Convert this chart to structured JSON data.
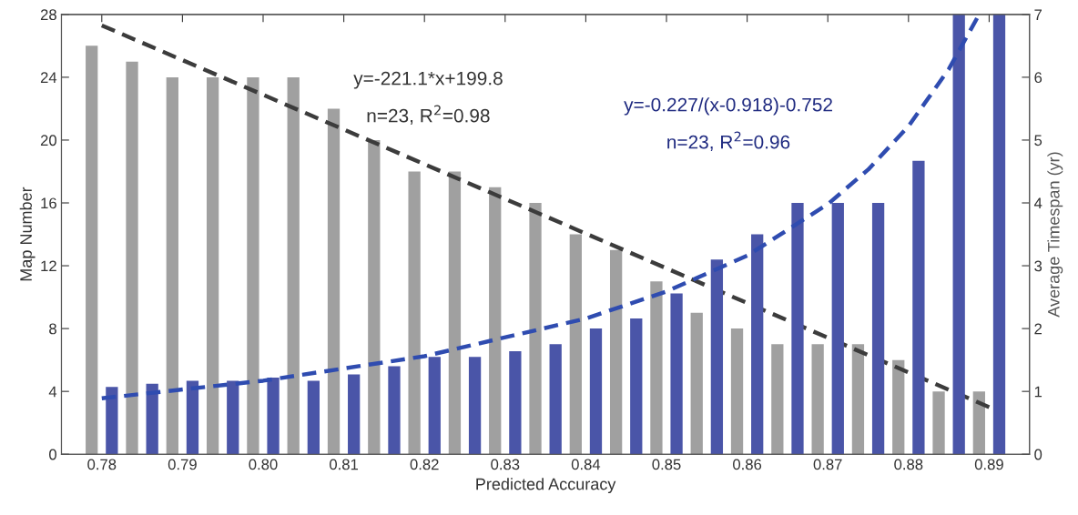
{
  "chart_data": {
    "type": "bar",
    "xlabel": "Predicted Accuracy",
    "ylabel": "Map Number",
    "y2label": "Average Timespan (yr)",
    "xlim": [
      0.775,
      0.895
    ],
    "xticks": [
      {
        "value": 0.78,
        "label": "0.78"
      },
      {
        "value": 0.79,
        "label": "0.79"
      },
      {
        "value": 0.8,
        "label": "0.80"
      },
      {
        "value": 0.81,
        "label": "0.81"
      },
      {
        "value": 0.82,
        "label": "0.82"
      },
      {
        "value": 0.83,
        "label": "0.83"
      },
      {
        "value": 0.84,
        "label": "0.84"
      },
      {
        "value": 0.85,
        "label": "0.85"
      },
      {
        "value": 0.86,
        "label": "0.86"
      },
      {
        "value": 0.87,
        "label": "0.87"
      },
      {
        "value": 0.88,
        "label": "0.88"
      },
      {
        "value": 0.89,
        "label": "0.89"
      }
    ],
    "ylim": [
      0,
      28
    ],
    "yticks": [
      0,
      4,
      8,
      12,
      16,
      20,
      24,
      28
    ],
    "y2lim": [
      0,
      7
    ],
    "y2ticks": [
      0,
      1,
      2,
      3,
      4,
      5,
      6,
      7
    ],
    "grid": false,
    "legend": false,
    "series": [
      {
        "type": "bar",
        "color": "#a0a0a0",
        "x": [
          0.78,
          0.785,
          0.79,
          0.795,
          0.8,
          0.805,
          0.81,
          0.815,
          0.82,
          0.825,
          0.83,
          0.835,
          0.84,
          0.845,
          0.85,
          0.855,
          0.86,
          0.865,
          0.87,
          0.875,
          0.88,
          0.885,
          0.89
        ],
        "values": [
          26,
          25,
          24,
          24,
          24,
          24,
          22,
          20,
          18,
          18,
          17,
          16,
          14,
          13,
          11,
          9,
          8,
          7,
          7,
          7,
          6,
          4,
          4
        ]
      },
      {
        "type": "bar",
        "axis": "y2",
        "color": "#4a55a8",
        "x": [
          0.78,
          0.785,
          0.79,
          0.795,
          0.8,
          0.805,
          0.81,
          0.815,
          0.82,
          0.825,
          0.83,
          0.835,
          0.84,
          0.845,
          0.85,
          0.855,
          0.86,
          0.865,
          0.87,
          0.875,
          0.88,
          0.885,
          0.89
        ],
        "values": [
          1.07,
          1.12,
          1.17,
          1.17,
          1.22,
          1.17,
          1.27,
          1.4,
          1.55,
          1.55,
          1.64,
          1.75,
          2.0,
          2.16,
          2.56,
          3.1,
          3.5,
          4.0,
          4.0,
          4.0,
          4.67,
          7.0,
          7.0
        ]
      },
      {
        "type": "line",
        "color": "#3c3c3c",
        "line_style": "dashed",
        "x": [
          0.78,
          0.89
        ],
        "values": [
          27.3,
          3.0
        ]
      },
      {
        "type": "line",
        "axis": "y2",
        "color": "#2f4cb0",
        "line_style": "dashed",
        "x": [
          0.78,
          0.8,
          0.82,
          0.84,
          0.85,
          0.86,
          0.87,
          0.875,
          0.88,
          0.885,
          0.8885
        ],
        "values": [
          0.89,
          1.17,
          1.56,
          2.16,
          2.59,
          3.16,
          3.98,
          4.53,
          5.22,
          6.13,
          6.94
        ]
      }
    ],
    "annotations": [
      "y=-221.1*x+199.8",
      "n=23, R$^{2}$=0.98",
      "y=-0.227/(x-0.918)-0.752",
      "n=23, R$^{2}$=0.96"
    ]
  }
}
